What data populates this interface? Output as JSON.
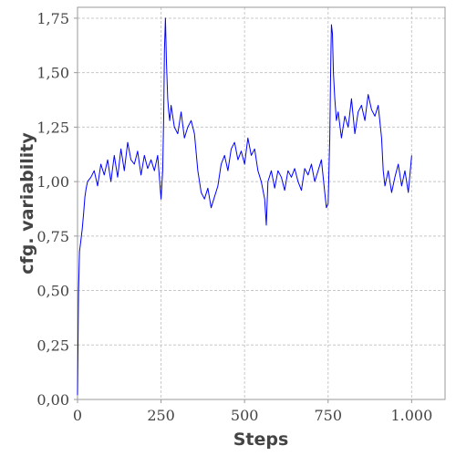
{
  "chart_data": {
    "type": "line",
    "title": "",
    "xlabel": "Steps",
    "ylabel": "cfg. variability",
    "xlim": [
      0,
      1100
    ],
    "ylim": [
      0,
      1.8
    ],
    "x_ticks": [
      0,
      250,
      500,
      750,
      1000
    ],
    "x_tick_labels": [
      "0",
      "250",
      "500",
      "750",
      "1.000"
    ],
    "y_ticks": [
      0,
      0.25,
      0.5,
      0.75,
      1.0,
      1.25,
      1.5,
      1.75
    ],
    "y_tick_labels": [
      "0,00",
      "0,25",
      "0,50",
      "0,75",
      "1,00",
      "1,25",
      "1,50",
      "1,75"
    ],
    "grid": true,
    "legend": "none",
    "series": [
      {
        "color": "#0000ff",
        "x": [
          0,
          3,
          6,
          10,
          14,
          18,
          22,
          26,
          30,
          40,
          50,
          60,
          70,
          80,
          90,
          100,
          110,
          120,
          130,
          140,
          150,
          160,
          170,
          180,
          190,
          200,
          210,
          220,
          230,
          240,
          250,
          255,
          258,
          260,
          263,
          266,
          270,
          273,
          276,
          280,
          285,
          290,
          300,
          310,
          320,
          330,
          340,
          350,
          360,
          370,
          380,
          390,
          400,
          410,
          420,
          430,
          440,
          450,
          460,
          470,
          480,
          490,
          500,
          510,
          520,
          530,
          540,
          550,
          560,
          565,
          570,
          580,
          590,
          600,
          610,
          620,
          630,
          640,
          650,
          660,
          670,
          680,
          690,
          700,
          710,
          720,
          730,
          740,
          745,
          750,
          755,
          758,
          760,
          763,
          766,
          770,
          775,
          780,
          790,
          800,
          810,
          820,
          830,
          840,
          850,
          860,
          870,
          880,
          890,
          900,
          910,
          915,
          920,
          930,
          940,
          950,
          960,
          970,
          980,
          990,
          1000
        ],
        "y": [
          0.02,
          0.5,
          0.68,
          0.73,
          0.78,
          0.85,
          0.93,
          0.97,
          1.0,
          1.02,
          1.05,
          0.98,
          1.08,
          1.03,
          1.1,
          1.0,
          1.12,
          1.02,
          1.15,
          1.05,
          1.18,
          1.1,
          1.08,
          1.14,
          1.03,
          1.12,
          1.06,
          1.1,
          1.05,
          1.12,
          0.92,
          1.05,
          1.3,
          1.6,
          1.75,
          1.55,
          1.38,
          1.32,
          1.28,
          1.35,
          1.3,
          1.25,
          1.22,
          1.32,
          1.2,
          1.25,
          1.28,
          1.22,
          1.05,
          0.95,
          0.92,
          0.97,
          0.88,
          0.93,
          0.98,
          1.08,
          1.12,
          1.05,
          1.15,
          1.18,
          1.1,
          1.14,
          1.08,
          1.2,
          1.12,
          1.15,
          1.05,
          1.0,
          0.92,
          0.8,
          1.0,
          1.05,
          0.97,
          1.05,
          1.02,
          0.96,
          1.05,
          1.02,
          1.06,
          1.0,
          0.96,
          1.06,
          1.03,
          1.08,
          1.0,
          1.05,
          1.1,
          0.95,
          0.88,
          0.9,
          1.2,
          1.55,
          1.72,
          1.68,
          1.5,
          1.38,
          1.28,
          1.32,
          1.2,
          1.3,
          1.25,
          1.38,
          1.22,
          1.32,
          1.35,
          1.28,
          1.4,
          1.33,
          1.3,
          1.35,
          1.2,
          1.05,
          0.98,
          1.05,
          0.95,
          1.02,
          1.08,
          0.98,
          1.05,
          0.95,
          1.12
        ]
      }
    ]
  }
}
